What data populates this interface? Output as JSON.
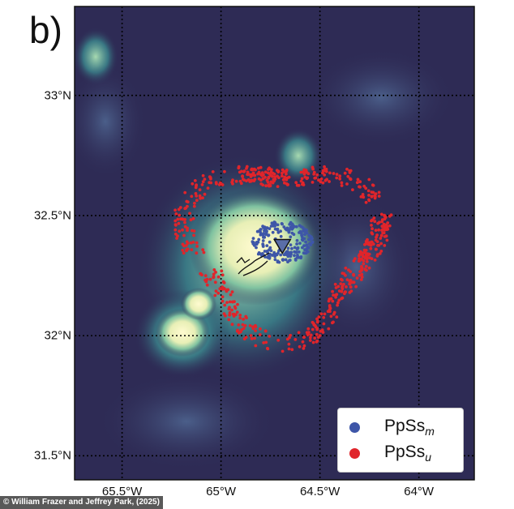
{
  "panel_label": "b)",
  "latitude_labels": [
    {
      "value": 33.0,
      "text": "33°N"
    },
    {
      "value": 32.5,
      "text": "32.5°N"
    },
    {
      "value": 32.0,
      "text": "32°N"
    },
    {
      "value": 31.5,
      "text": "31.5°N"
    }
  ],
  "longitude_labels": [
    {
      "value": -65.5,
      "text": "65.5°W"
    },
    {
      "value": -65.0,
      "text": "65°W"
    },
    {
      "value": -64.5,
      "text": "64.5°W"
    },
    {
      "value": -64.0,
      "text": "64°W"
    }
  ],
  "legend": {
    "items": [
      {
        "name": "PpSs",
        "subscript": "m",
        "color": "#3e56a8"
      },
      {
        "name": "PpSs",
        "subscript": "u",
        "color": "#e0252b"
      }
    ]
  },
  "credit": "© William Frazer and Jeffrey Park, (2025)",
  "colors": {
    "background_low": "#2e2b55",
    "shallow_mid": "#3c8a8f",
    "shallow_high": "#fbf5c2",
    "blue_points": "#3e56a8",
    "red_points": "#e0252b",
    "station_marker": "#5a6ea8"
  },
  "map_extent": {
    "lon_min": -65.74,
    "lon_max": -63.72,
    "lat_min": 31.4,
    "lat_max": 33.37
  },
  "station": {
    "lon": -64.69,
    "lat": 32.37
  }
}
